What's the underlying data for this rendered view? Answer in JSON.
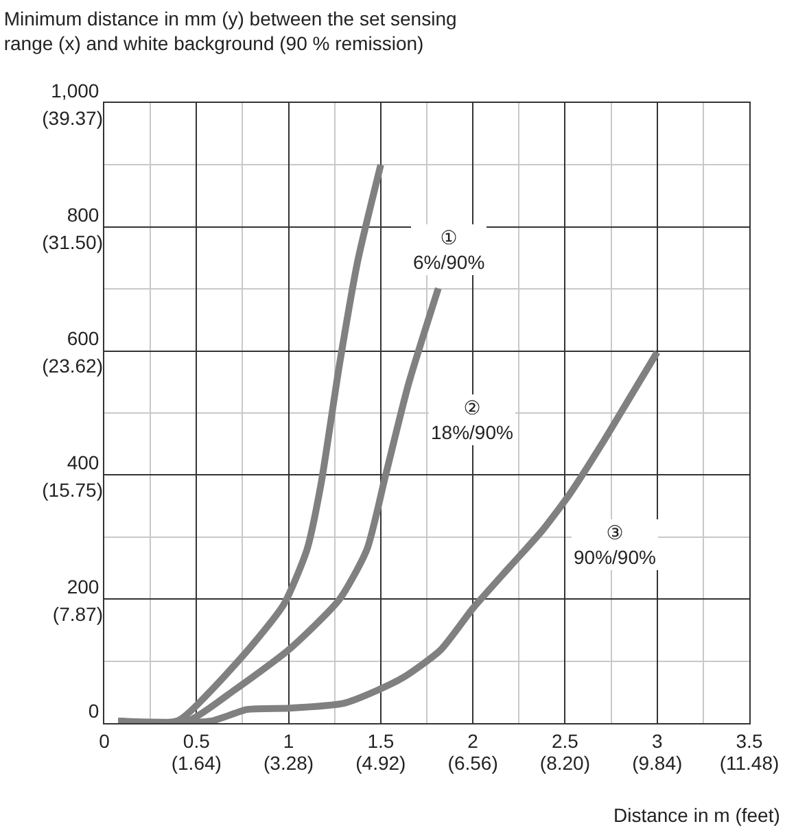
{
  "chart_data": {
    "type": "line",
    "title": "Minimum distance in mm (y) between the set sensing\nrange (x) and white background (90 % remission)",
    "xlabel": "Distance in m (feet)",
    "xlim": [
      0,
      3.5
    ],
    "ylim": [
      0,
      1000
    ],
    "xticks": [
      0,
      {
        "value": 0.25,
        "label": null
      },
      0.5,
      {
        "value": 0.75,
        "label": null
      },
      1,
      {
        "value": 1.25,
        "label": null
      },
      1.5,
      {
        "value": 1.75,
        "label": null
      },
      2,
      {
        "value": 2.25,
        "label": null
      },
      2.5,
      {
        "value": 2.75,
        "label": null
      },
      3,
      {
        "value": 3.25,
        "label": null
      },
      3.5
    ],
    "yticks": [
      0,
      {
        "value": 100,
        "label": null
      },
      200,
      {
        "value": 300,
        "label": null
      },
      400,
      {
        "value": 500,
        "label": null
      },
      600,
      {
        "value": 700,
        "label": null
      },
      800,
      {
        "value": 900,
        "label": null
      },
      {
        "value": 1000,
        "label": "1,000"
      }
    ],
    "x2lim": [
      0,
      11.48
    ],
    "x2ticks": [
      {
        "value": 1.64,
        "label": "(1.64)"
      },
      {
        "value": 3.28,
        "label": "(3.28)"
      },
      {
        "value": 4.92,
        "label": "(4.92)"
      },
      {
        "value": 6.56,
        "label": "(6.56)"
      },
      {
        "value": 8.2,
        "label": "(8.20)"
      },
      {
        "value": 9.84,
        "label": "(9.84)"
      },
      {
        "value": 11.48,
        "label": "(11.48)"
      }
    ],
    "y2lim": [
      0,
      39.37
    ],
    "y2ticks": [
      {
        "value": 7.87,
        "label": "(7.87)"
      },
      {
        "value": 15.75,
        "label": "(15.75)"
      },
      {
        "value": 23.62,
        "label": "(23.62)"
      },
      {
        "value": 31.5,
        "label": "(31.50)"
      },
      {
        "value": 39.37,
        "label": "(39.37)"
      }
    ],
    "grid": true,
    "marker": "none",
    "line_style": "solid",
    "series": [
      {
        "color": "#808080",
        "x": [
          0.075,
          0.4,
          0.6,
          0.8,
          0.975,
          1.1,
          1.175,
          1.275,
          1.375,
          1.5
        ],
        "values": [
          3,
          4,
          59,
          125,
          192,
          280,
          384,
          576,
          745,
          900
        ]
      },
      {
        "color": "#808080",
        "x": [
          0.075,
          0.45,
          0.7,
          1.0,
          1.275,
          1.425,
          1.525,
          1.65,
          1.8125
        ],
        "values": [
          3,
          3,
          52,
          118,
          199,
          280,
          398,
          546,
          701
        ]
      },
      {
        "color": "#808080",
        "x": [
          0.075,
          0.575,
          0.775,
          1.0,
          1.3,
          1.475,
          1.625,
          1.825,
          2.0,
          2.2,
          2.375,
          2.525,
          2.7,
          2.85,
          3.0
        ],
        "values": [
          3,
          3,
          22,
          24,
          32,
          52,
          74,
          118,
          185,
          252,
          310,
          369,
          450,
          524,
          598
        ]
      }
    ],
    "annotations": [
      "①\n6%/90%",
      "②\n18%/90%",
      "③\n90%/90%"
    ]
  }
}
